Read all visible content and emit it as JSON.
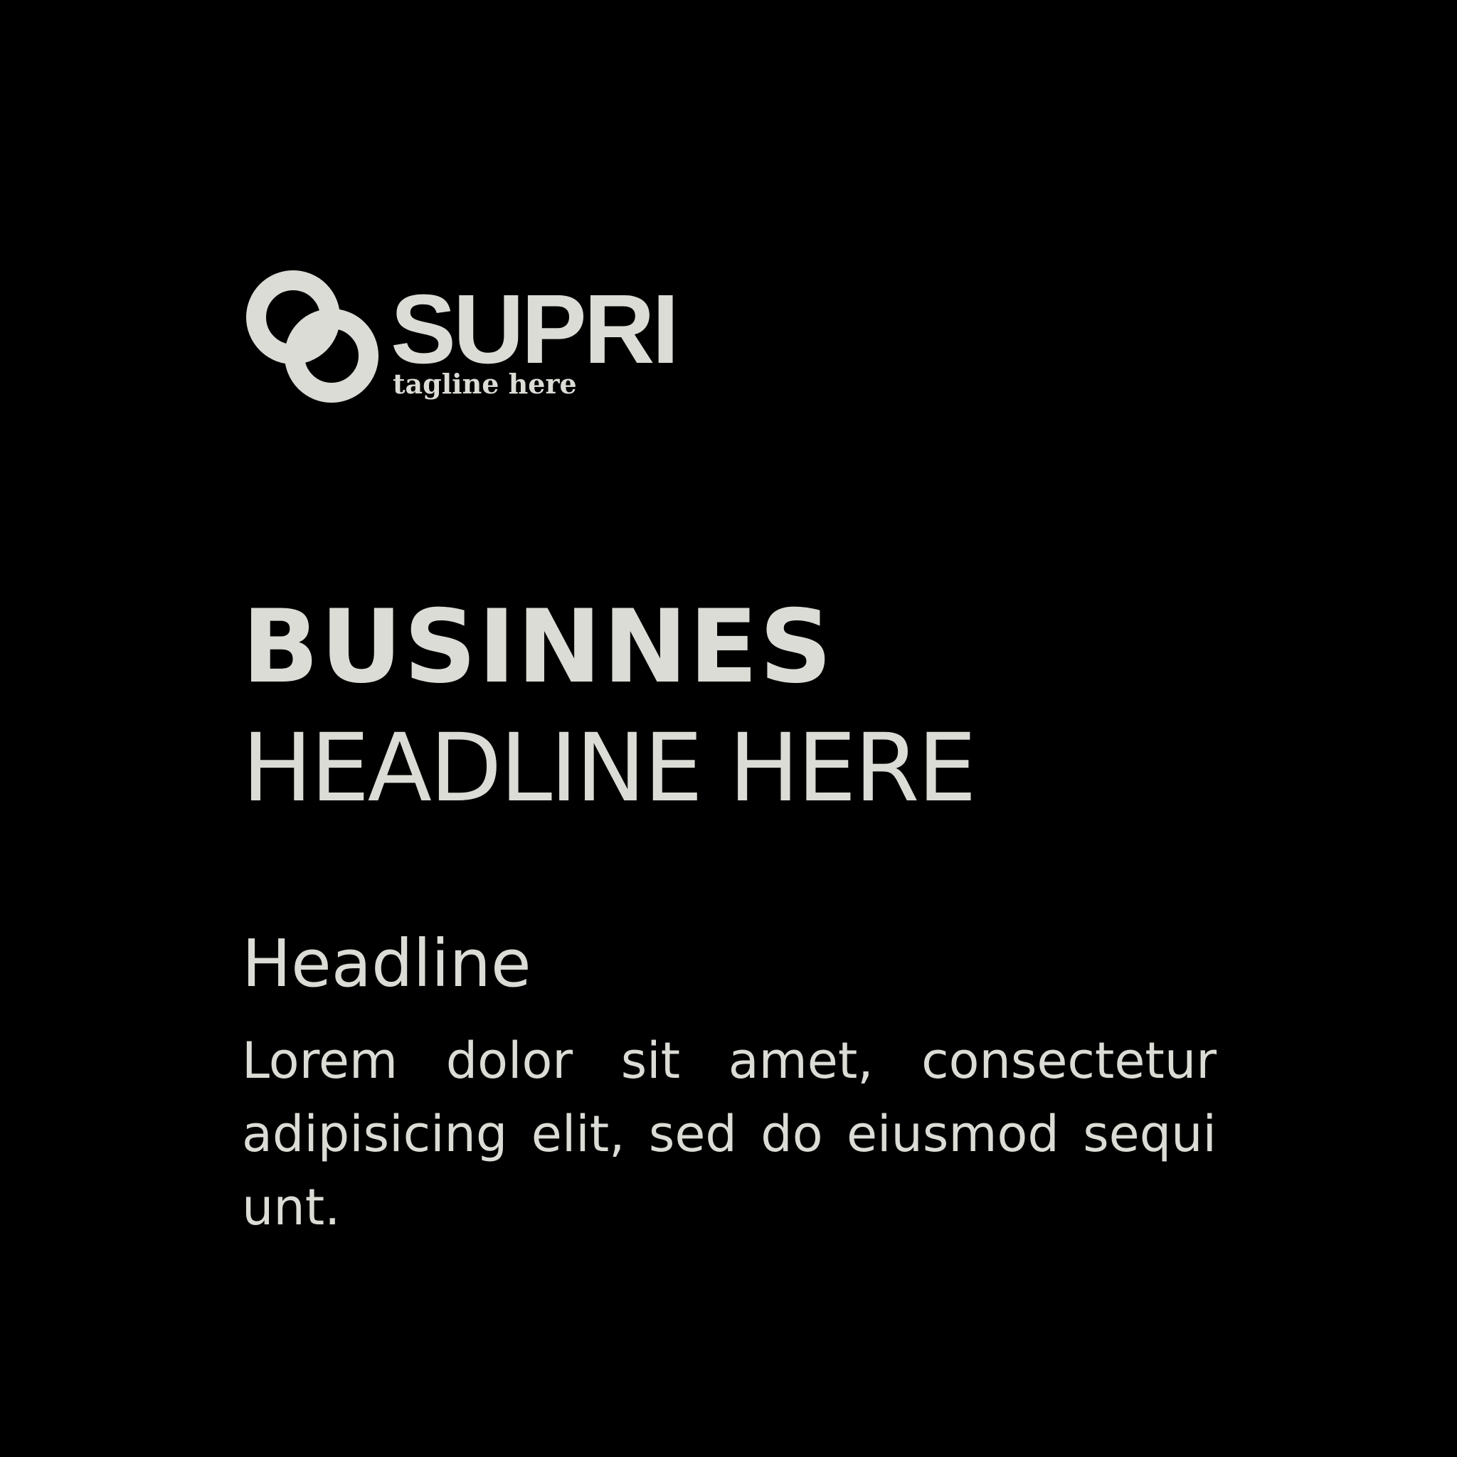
{
  "brand": {
    "name": "SUPRI",
    "tagline": "tagline here",
    "logo_icon": "interlocking-rings-icon"
  },
  "headline": {
    "line1": "BUSINNES",
    "line2": "HEADLINE HERE"
  },
  "section": {
    "subheading": "Headline",
    "body": "Lorem dolor sit amet, consectetur adipisicing elit, sed do eiusmod sequi unt."
  },
  "colors": {
    "background": "#000000",
    "text": "#dcdcd6"
  }
}
